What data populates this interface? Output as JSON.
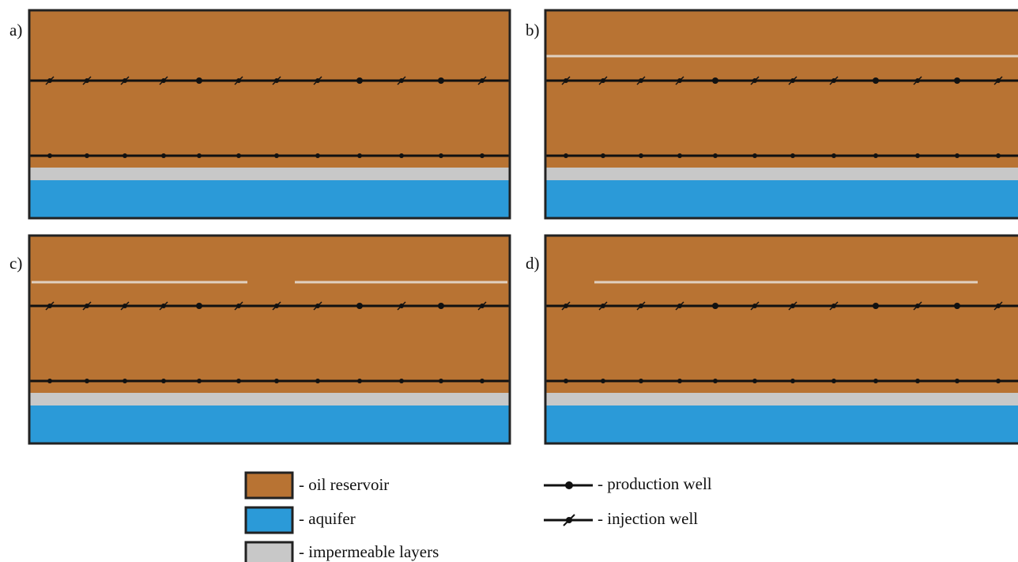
{
  "panels": [
    {
      "label": "a)"
    },
    {
      "label": "b)"
    },
    {
      "label": "c)"
    },
    {
      "label": "d)"
    }
  ],
  "legend": {
    "oil_reservoir": "- oil reservoir",
    "aquifer": "- aquifer",
    "impermeable_layers": "- impermeable layers",
    "production_well": "- production well",
    "injection_well": "- injection well"
  }
}
